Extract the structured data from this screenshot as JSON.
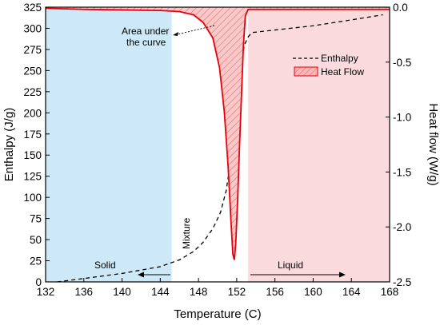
{
  "chart_data": {
    "type": "line",
    "x": {
      "label": "Temperature (C)",
      "range": [
        132,
        168
      ],
      "ticks": [
        "132",
        "136",
        "140",
        "144",
        "148",
        "152",
        "156",
        "160",
        "164",
        "168"
      ]
    },
    "y_left": {
      "label": "Enthalpy (J/g)",
      "range": [
        0,
        325
      ],
      "ticks": [
        "0",
        "25",
        "50",
        "75",
        "100",
        "125",
        "150",
        "175",
        "200",
        "225",
        "250",
        "275",
        "300",
        "325"
      ]
    },
    "y_right": {
      "label": "Heat flow (W/g)",
      "range": [
        -2.5,
        0
      ],
      "ticks": [
        "-2.5",
        "-2.0",
        "-1.5",
        "-1.0",
        "-0.5",
        "0.0"
      ]
    },
    "regions": [
      {
        "name": "Solid",
        "x": [
          132,
          145.2
        ],
        "color": "#cde8f7"
      },
      {
        "name": "Mixture",
        "x": [
          145.2,
          153.2
        ],
        "color": "#ffffff"
      },
      {
        "name": "Liquid",
        "x": [
          153.2,
          168
        ],
        "color": "#fadadd"
      }
    ],
    "series": [
      {
        "name": "Enthalpy",
        "axis": "left",
        "style": "dashed",
        "color": "#000000",
        "points": [
          [
            133.2,
            0
          ],
          [
            136,
            4
          ],
          [
            140,
            10
          ],
          [
            144,
            18
          ],
          [
            146,
            26
          ],
          [
            147.5,
            36
          ],
          [
            148.5,
            47
          ],
          [
            149.5,
            63
          ],
          [
            150.3,
            82
          ],
          [
            150.9,
            108
          ],
          [
            151.4,
            145
          ],
          [
            151.8,
            190
          ],
          [
            152.2,
            232
          ],
          [
            152.5,
            262
          ],
          [
            152.8,
            280
          ],
          [
            153.2,
            290
          ],
          [
            153.6,
            295
          ],
          [
            156,
            298
          ],
          [
            160,
            303
          ],
          [
            164,
            310
          ],
          [
            167.3,
            316
          ]
        ]
      },
      {
        "name": "Heat Flow",
        "axis": "right",
        "style": "solid-filled",
        "color": "#e8000b",
        "fill": "#f4a7a7",
        "points": [
          [
            132,
            -0.01
          ],
          [
            136,
            -0.02
          ],
          [
            140,
            -0.025
          ],
          [
            144,
            -0.03
          ],
          [
            146,
            -0.04
          ],
          [
            147.5,
            -0.07
          ],
          [
            148.5,
            -0.14
          ],
          [
            149.5,
            -0.28
          ],
          [
            150.2,
            -0.55
          ],
          [
            150.7,
            -0.95
          ],
          [
            151.1,
            -1.45
          ],
          [
            151.4,
            -1.95
          ],
          [
            151.6,
            -2.25
          ],
          [
            151.75,
            -2.3
          ],
          [
            151.9,
            -2.15
          ],
          [
            152.1,
            -1.75
          ],
          [
            152.3,
            -1.25
          ],
          [
            152.5,
            -0.8
          ],
          [
            152.7,
            -0.35
          ],
          [
            152.9,
            -0.08
          ],
          [
            153.2,
            -0.02
          ],
          [
            156,
            -0.02
          ],
          [
            160,
            -0.02
          ],
          [
            164,
            -0.02
          ],
          [
            168,
            -0.02
          ]
        ]
      }
    ],
    "legend": {
      "position": "top-right",
      "items": [
        {
          "label": "Enthalpy",
          "symbol": "dashed-line"
        },
        {
          "label": "Heat Flow",
          "symbol": "hatched-box"
        }
      ]
    },
    "annotations": {
      "area_line1": "Area under",
      "area_line2": "the curve",
      "solid": "Solid",
      "mixture": "Mixture",
      "liquid": "Liquid"
    },
    "grid": false
  }
}
